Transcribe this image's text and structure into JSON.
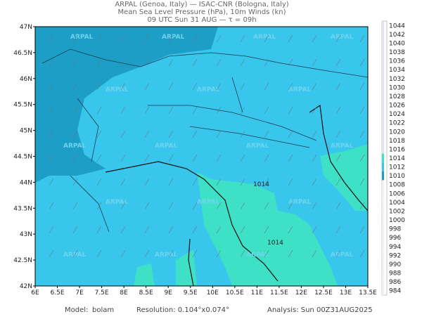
{
  "header": {
    "line1": "ARPAL (Genoa, Italy)  —  ISAC-CNR (Bologna, Italy)",
    "line2": "Mean Sea Level Pressure (hPa), 10m Winds (kn)",
    "line3": "09 UTC Sun 31 AUG  —  τ = 09h"
  },
  "map": {
    "lon_ticks": [
      "6E",
      "6.5E",
      "7E",
      "7.5E",
      "8E",
      "8.5E",
      "9E",
      "9.5E",
      "10E",
      "10.5E",
      "11E",
      "11.5E",
      "12E",
      "12.5E",
      "13E",
      "13.5E"
    ],
    "lat_ticks": [
      "47N",
      "46.5N",
      "46N",
      "45.5N",
      "45N",
      "44.5N",
      "44N",
      "43.5N",
      "43N",
      "42.5N",
      "42N"
    ],
    "contour_labels": [
      "1014",
      "1014"
    ],
    "watermark": "ARPAL"
  },
  "colorbar": {
    "levels": [
      1044,
      1042,
      1040,
      1038,
      1036,
      1034,
      1032,
      1030,
      1028,
      1026,
      1024,
      1022,
      1020,
      1018,
      1016,
      1014,
      1012,
      1010,
      1008,
      1006,
      1004,
      1002,
      1000,
      998,
      996,
      994,
      992,
      990,
      988,
      986,
      984
    ]
  },
  "footer": {
    "model_label": "Model:",
    "model": "bolam",
    "resolution": "Resolution: 0.104°x0.074°",
    "analysis": "Analysis: Sun 00Z31AUG2025"
  }
}
